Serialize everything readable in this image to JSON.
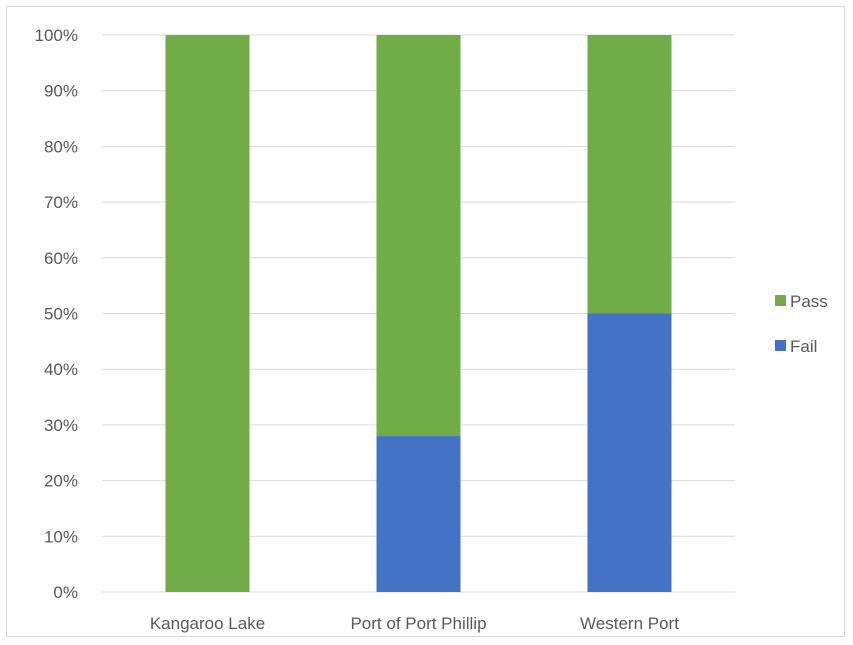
{
  "chart_data": {
    "type": "bar",
    "stacked": true,
    "categories": [
      "Kangaroo Lake",
      "Port of Port Phillip",
      "Western Port"
    ],
    "series": [
      {
        "name": "Fail",
        "values": [
          0,
          28,
          50
        ],
        "color": "#4472c4"
      },
      {
        "name": "Pass",
        "values": [
          100,
          72,
          50
        ],
        "color": "#70ad47"
      }
    ],
    "y_ticks": [
      "0%",
      "10%",
      "20%",
      "30%",
      "40%",
      "50%",
      "60%",
      "70%",
      "80%",
      "90%",
      "100%"
    ],
    "ylim": [
      0,
      100
    ],
    "title": "",
    "xlabel": "",
    "ylabel": "",
    "grid": true,
    "legend": {
      "position": "right",
      "entries": [
        {
          "name": "Pass",
          "color": "#70ad47"
        },
        {
          "name": "Fail",
          "color": "#4472c4"
        }
      ]
    }
  }
}
